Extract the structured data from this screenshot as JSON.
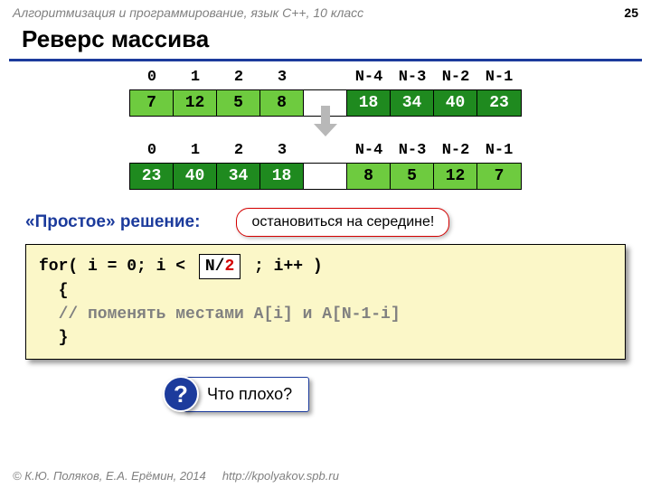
{
  "header": {
    "course": "Алгоритмизация и программирование, язык C++, 10 класс",
    "page": "25"
  },
  "title": "Реверс массива",
  "indices": [
    "0",
    "1",
    "2",
    "3",
    "",
    "N-4",
    "N-3",
    "N-2",
    "N-1"
  ],
  "array1": {
    "cells": [
      {
        "v": "7",
        "bg": "#6ecb3f",
        "fg": "#000000"
      },
      {
        "v": "12",
        "bg": "#6ecb3f",
        "fg": "#000000"
      },
      {
        "v": "5",
        "bg": "#6ecb3f",
        "fg": "#000000"
      },
      {
        "v": "8",
        "bg": "#6ecb3f",
        "fg": "#000000"
      },
      {
        "v": "",
        "bg": "#ffffff",
        "fg": "#000000"
      },
      {
        "v": "18",
        "bg": "#1f8a1f",
        "fg": "#ffffff"
      },
      {
        "v": "34",
        "bg": "#1f8a1f",
        "fg": "#ffffff"
      },
      {
        "v": "40",
        "bg": "#1f8a1f",
        "fg": "#ffffff"
      },
      {
        "v": "23",
        "bg": "#1f8a1f",
        "fg": "#ffffff"
      }
    ]
  },
  "array2": {
    "cells": [
      {
        "v": "23",
        "bg": "#1f8a1f",
        "fg": "#ffffff"
      },
      {
        "v": "40",
        "bg": "#1f8a1f",
        "fg": "#ffffff"
      },
      {
        "v": "34",
        "bg": "#1f8a1f",
        "fg": "#ffffff"
      },
      {
        "v": "18",
        "bg": "#1f8a1f",
        "fg": "#ffffff"
      },
      {
        "v": "",
        "bg": "#ffffff",
        "fg": "#000000"
      },
      {
        "v": "8",
        "bg": "#6ecb3f",
        "fg": "#000000"
      },
      {
        "v": "5",
        "bg": "#6ecb3f",
        "fg": "#000000"
      },
      {
        "v": "12",
        "bg": "#6ecb3f",
        "fg": "#000000"
      },
      {
        "v": "7",
        "bg": "#6ecb3f",
        "fg": "#000000"
      }
    ]
  },
  "simple_label": "«Простое» решение:",
  "bubble": "остановиться на середине!",
  "code": {
    "l1a": "for( i = 0; i < ",
    "l1_n": "N/",
    "l1_two": "2",
    "l1b": " ; i++ )",
    "l2": "  {",
    "l3": "  // поменять местами A[i] и A[N-1-i]",
    "l4": "  }"
  },
  "question_mark": "?",
  "question": "Что плохо?",
  "footer": {
    "authors": "© К.Ю. Поляков, Е.А. Ерёмин, 2014",
    "url": "http://kpolyakov.spb.ru"
  }
}
